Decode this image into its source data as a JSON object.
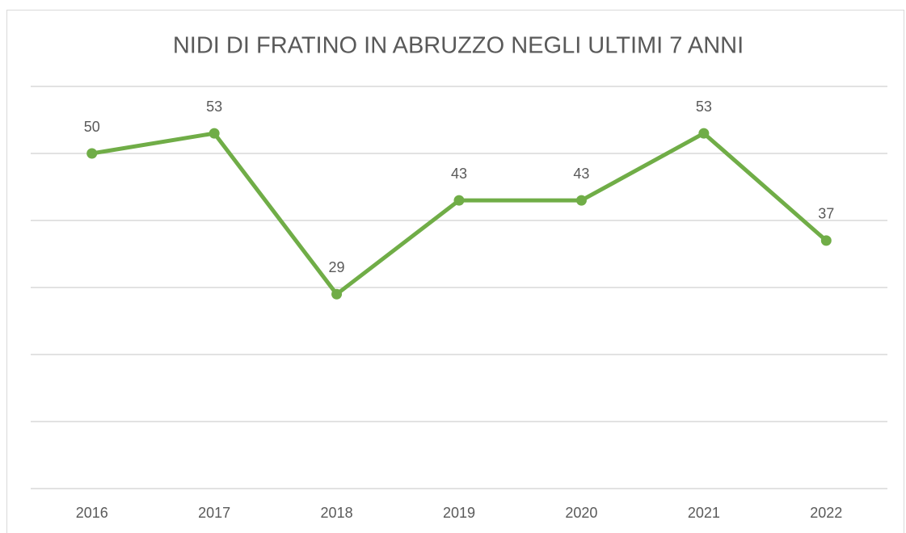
{
  "chart_data": {
    "type": "line",
    "title": "NIDI DI FRATINO IN ABRUZZO NEGLI ULTIMI 7 ANNI",
    "categories": [
      "2016",
      "2017",
      "2018",
      "2019",
      "2020",
      "2021",
      "2022"
    ],
    "values": [
      50,
      53,
      29,
      43,
      43,
      53,
      37
    ],
    "color": "#70ad47",
    "ylim": [
      0,
      60
    ],
    "yticks": [
      0,
      10,
      20,
      30,
      40,
      50,
      60
    ],
    "grid": true,
    "data_labels": true
  }
}
